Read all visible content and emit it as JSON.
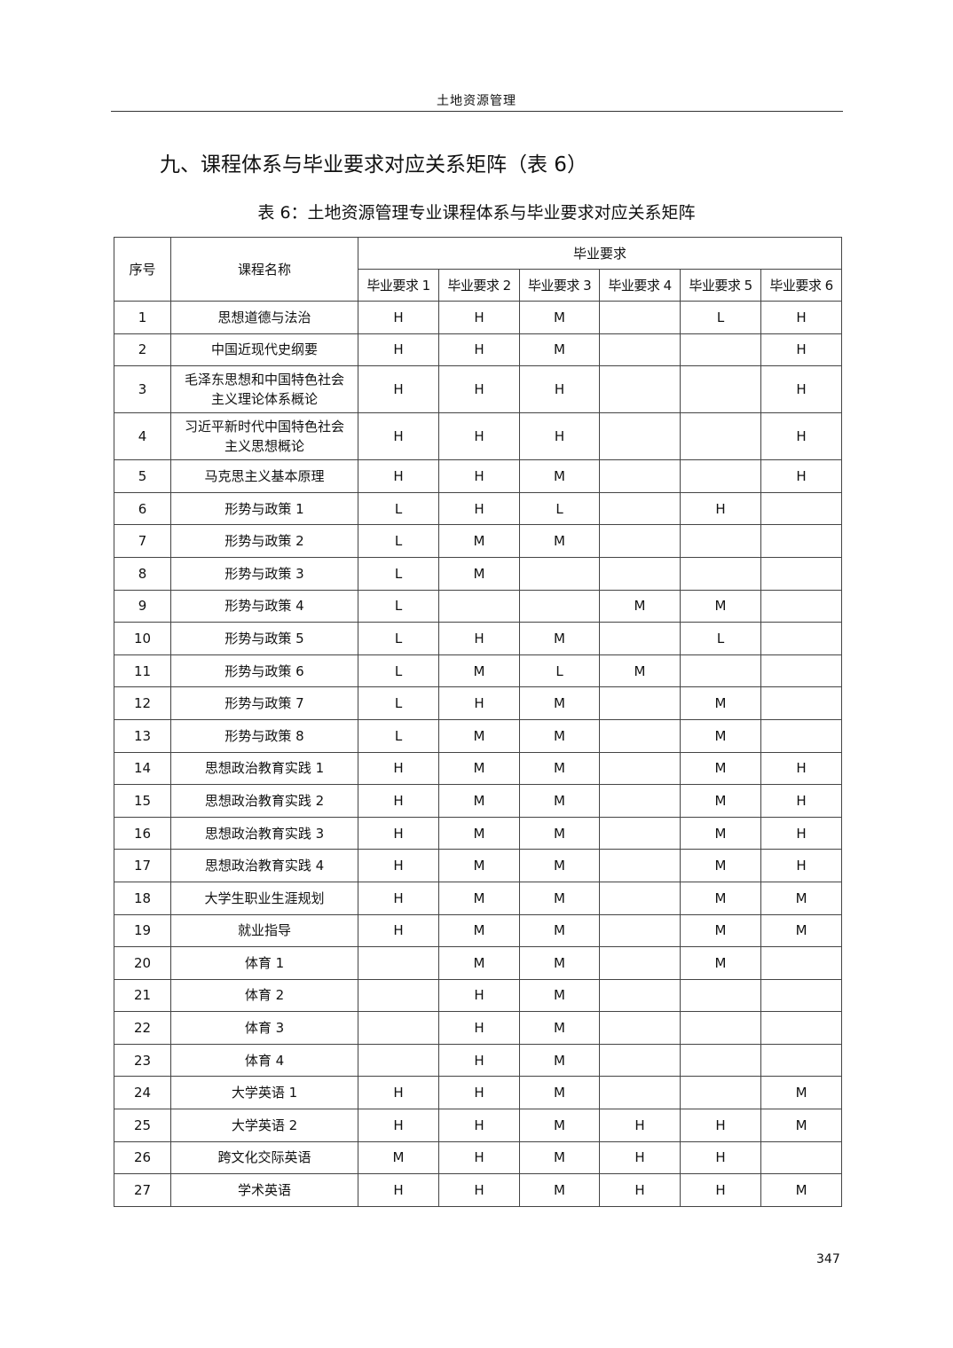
{
  "running_head": "土地资源管理",
  "section_title": "九、课程体系与毕业要求对应关系矩阵（表 6）",
  "table_caption": "表 6：土地资源管理专业课程体系与毕业要求对应关系矩阵",
  "table": {
    "col_no": "序号",
    "col_course": "课程名称",
    "group_header": "毕业要求",
    "requirement_headers": [
      "毕业要求 1",
      "毕业要求 2",
      "毕业要求 3",
      "毕业要求 4",
      "毕业要求 5",
      "毕业要求 6"
    ],
    "rows": [
      {
        "no": "1",
        "course": "思想道德与法治",
        "r": [
          "H",
          "H",
          "M",
          "",
          "L",
          "H"
        ]
      },
      {
        "no": "2",
        "course": "中国近现代史纲要",
        "r": [
          "H",
          "H",
          "M",
          "",
          "",
          "H"
        ]
      },
      {
        "no": "3",
        "course": "毛泽东思想和中国特色社会主义理论体系概论",
        "r": [
          "H",
          "H",
          "H",
          "",
          "",
          "H"
        ]
      },
      {
        "no": "4",
        "course": "习近平新时代中国特色社会主义思想概论",
        "r": [
          "H",
          "H",
          "H",
          "",
          "",
          "H"
        ]
      },
      {
        "no": "5",
        "course": "马克思主义基本原理",
        "r": [
          "H",
          "H",
          "M",
          "",
          "",
          "H"
        ]
      },
      {
        "no": "6",
        "course": "形势与政策 1",
        "r": [
          "L",
          "H",
          "L",
          "",
          "H",
          ""
        ]
      },
      {
        "no": "7",
        "course": "形势与政策 2",
        "r": [
          "L",
          "M",
          "M",
          "",
          "",
          ""
        ]
      },
      {
        "no": "8",
        "course": "形势与政策 3",
        "r": [
          "L",
          "M",
          "",
          "",
          "",
          ""
        ]
      },
      {
        "no": "9",
        "course": "形势与政策 4",
        "r": [
          "L",
          "",
          "",
          "M",
          "M",
          ""
        ]
      },
      {
        "no": "10",
        "course": "形势与政策 5",
        "r": [
          "L",
          "H",
          "M",
          "",
          "L",
          ""
        ]
      },
      {
        "no": "11",
        "course": "形势与政策 6",
        "r": [
          "L",
          "M",
          "L",
          "M",
          "",
          ""
        ]
      },
      {
        "no": "12",
        "course": "形势与政策 7",
        "r": [
          "L",
          "H",
          "M",
          "",
          "M",
          ""
        ]
      },
      {
        "no": "13",
        "course": "形势与政策 8",
        "r": [
          "L",
          "M",
          "M",
          "",
          "M",
          ""
        ]
      },
      {
        "no": "14",
        "course": "思想政治教育实践 1",
        "r": [
          "H",
          "M",
          "M",
          "",
          "M",
          "H"
        ]
      },
      {
        "no": "15",
        "course": "思想政治教育实践 2",
        "r": [
          "H",
          "M",
          "M",
          "",
          "M",
          "H"
        ]
      },
      {
        "no": "16",
        "course": "思想政治教育实践 3",
        "r": [
          "H",
          "M",
          "M",
          "",
          "M",
          "H"
        ]
      },
      {
        "no": "17",
        "course": "思想政治教育实践 4",
        "r": [
          "H",
          "M",
          "M",
          "",
          "M",
          "H"
        ]
      },
      {
        "no": "18",
        "course": "大学生职业生涯规划",
        "r": [
          "H",
          "M",
          "M",
          "",
          "M",
          "M"
        ]
      },
      {
        "no": "19",
        "course": "就业指导",
        "r": [
          "H",
          "M",
          "M",
          "",
          "M",
          "M"
        ]
      },
      {
        "no": "20",
        "course": "体育 1",
        "r": [
          "",
          "M",
          "M",
          "",
          "M",
          ""
        ]
      },
      {
        "no": "21",
        "course": "体育 2",
        "r": [
          "",
          "H",
          "M",
          "",
          "",
          ""
        ]
      },
      {
        "no": "22",
        "course": "体育 3",
        "r": [
          "",
          "H",
          "M",
          "",
          "",
          ""
        ]
      },
      {
        "no": "23",
        "course": "体育 4",
        "r": [
          "",
          "H",
          "M",
          "",
          "",
          ""
        ]
      },
      {
        "no": "24",
        "course": "大学英语 1",
        "r": [
          "H",
          "H",
          "M",
          "",
          "",
          "M"
        ]
      },
      {
        "no": "25",
        "course": "大学英语 2",
        "r": [
          "H",
          "H",
          "M",
          "H",
          "H",
          "M"
        ]
      },
      {
        "no": "26",
        "course": "跨文化交际英语",
        "r": [
          "M",
          "H",
          "M",
          "H",
          "H",
          ""
        ]
      },
      {
        "no": "27",
        "course": "学术英语",
        "r": [
          "H",
          "H",
          "M",
          "H",
          "H",
          "M"
        ]
      }
    ]
  },
  "page_number": "347"
}
